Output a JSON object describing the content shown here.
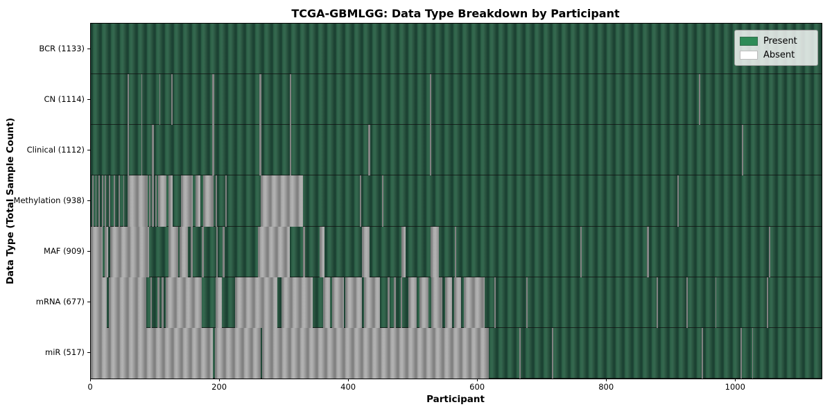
{
  "title": "TCGA-GBMLGG: Data Type Breakdown by Participant",
  "axes": {
    "x_label": "Participant",
    "y_label": "Data Type (Total Sample Count)",
    "x_ticks": [
      0,
      200,
      400,
      600,
      800,
      1000
    ]
  },
  "legend": {
    "items": [
      {
        "label": "Present",
        "color": "#2e8b57"
      },
      {
        "label": "Absent",
        "color": "#ffffff"
      }
    ]
  },
  "chart_data": {
    "type": "heatmap",
    "title": "TCGA-GBMLGG: Data Type Breakdown by Participant",
    "xlabel": "Participant",
    "ylabel": "Data Type (Total Sample Count)",
    "x_range": [
      0,
      1133
    ],
    "legend_position": "upper right",
    "present_color": "#2e8b57",
    "absent_color": "#ffffff",
    "rows": [
      {
        "name": "BCR",
        "label": "BCR (1133)",
        "present_count": 1133,
        "absent_ranges": []
      },
      {
        "name": "CN",
        "label": "CN (1114)",
        "present_count": 1114,
        "absent_ranges": [
          [
            57,
            59
          ],
          [
            78,
            80
          ],
          [
            106,
            108
          ],
          [
            125,
            127
          ],
          [
            188,
            191
          ],
          [
            261,
            264
          ],
          [
            308,
            311
          ],
          [
            526,
            528
          ],
          [
            943,
            945
          ]
        ]
      },
      {
        "name": "Clinical",
        "label": "Clinical (1112)",
        "present_count": 1112,
        "absent_ranges": [
          [
            57,
            59
          ],
          [
            78,
            80
          ],
          [
            95,
            98
          ],
          [
            188,
            191
          ],
          [
            261,
            264
          ],
          [
            308,
            311
          ],
          [
            430,
            433
          ],
          [
            526,
            528
          ],
          [
            1009,
            1011
          ]
        ]
      },
      {
        "name": "Methylation",
        "label": "Methylation (938)",
        "present_count": 938,
        "absent_ranges": [
          [
            2,
            4
          ],
          [
            7,
            9
          ],
          [
            12,
            14
          ],
          [
            17,
            19
          ],
          [
            22,
            24
          ],
          [
            28,
            30
          ],
          [
            36,
            38
          ],
          [
            43,
            45
          ],
          [
            50,
            52
          ],
          [
            57,
            88
          ],
          [
            90,
            92
          ],
          [
            95,
            98
          ],
          [
            100,
            102
          ],
          [
            104,
            117
          ],
          [
            120,
            127
          ],
          [
            140,
            158
          ],
          [
            162,
            170
          ],
          [
            174,
            190
          ],
          [
            193,
            196
          ],
          [
            209,
            211
          ],
          [
            263,
            329
          ],
          [
            417,
            419
          ],
          [
            452,
            454
          ],
          [
            909,
            912
          ]
        ]
      },
      {
        "name": "MAF",
        "label": "MAF (909)",
        "present_count": 909,
        "absent_ranges": [
          [
            0,
            18
          ],
          [
            21,
            27
          ],
          [
            30,
            90
          ],
          [
            120,
            135
          ],
          [
            138,
            150
          ],
          [
            155,
            158
          ],
          [
            172,
            175
          ],
          [
            195,
            197
          ],
          [
            204,
            207
          ],
          [
            259,
            308
          ],
          [
            329,
            332
          ],
          [
            355,
            362
          ],
          [
            420,
            432
          ],
          [
            482,
            488
          ],
          [
            527,
            540
          ],
          [
            564,
            567
          ],
          [
            759,
            761
          ],
          [
            862,
            865
          ],
          [
            1051,
            1053
          ]
        ]
      },
      {
        "name": "mRNA",
        "label": "mRNA (677)",
        "present_count": 677,
        "absent_ranges": [
          [
            0,
            25
          ],
          [
            28,
            86
          ],
          [
            92,
            95
          ],
          [
            103,
            106
          ],
          [
            110,
            113
          ],
          [
            116,
            172
          ],
          [
            193,
            203
          ],
          [
            224,
            289
          ],
          [
            296,
            344
          ],
          [
            360,
            371
          ],
          [
            374,
            392
          ],
          [
            395,
            420
          ],
          [
            424,
            448
          ],
          [
            460,
            463
          ],
          [
            470,
            473
          ],
          [
            480,
            483
          ],
          [
            492,
            505
          ],
          [
            509,
            524
          ],
          [
            528,
            545
          ],
          [
            549,
            560
          ],
          [
            563,
            574
          ],
          [
            578,
            611
          ],
          [
            626,
            628
          ],
          [
            675,
            677
          ],
          [
            877,
            879
          ],
          [
            923,
            925
          ],
          [
            968,
            970
          ],
          [
            1048,
            1050
          ]
        ]
      },
      {
        "name": "miR",
        "label": "miR (517)",
        "present_count": 517,
        "absent_ranges": [
          [
            0,
            189
          ],
          [
            192,
            263
          ],
          [
            265,
            617
          ],
          [
            664,
            666
          ],
          [
            715,
            717
          ],
          [
            947,
            949
          ],
          [
            1007,
            1009
          ],
          [
            1025,
            1027
          ]
        ]
      }
    ]
  }
}
